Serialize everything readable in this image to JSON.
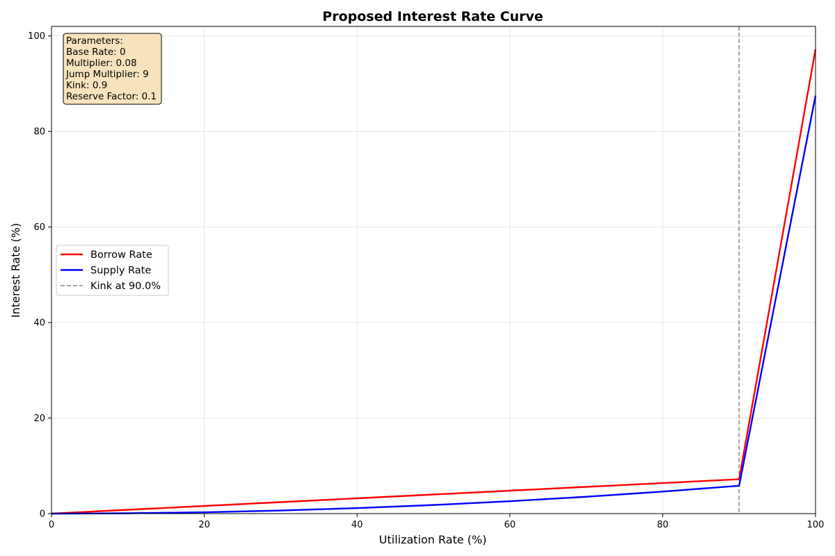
{
  "chart_data": {
    "type": "line",
    "title": "Proposed Interest Rate Curve",
    "xlabel": "Utilization Rate (%)",
    "ylabel": "Interest Rate (%)",
    "xlim": [
      0,
      100
    ],
    "ylim": [
      0,
      102
    ],
    "xticks": [
      0,
      20,
      40,
      60,
      80,
      100
    ],
    "yticks": [
      0,
      20,
      40,
      60,
      80,
      100
    ],
    "grid": true,
    "legend_position": "center-left",
    "series": [
      {
        "name": "Borrow Rate",
        "color": "#ff0000",
        "x": [
          0,
          10,
          20,
          30,
          40,
          50,
          60,
          70,
          80,
          90,
          100
        ],
        "y": [
          0,
          0.8,
          1.6,
          2.4,
          3.2,
          4.0,
          4.8,
          5.6,
          6.4,
          7.2,
          97.2
        ]
      },
      {
        "name": "Supply Rate",
        "color": "#0000ff",
        "x": [
          0,
          10,
          20,
          30,
          40,
          50,
          60,
          70,
          80,
          90,
          100
        ],
        "y": [
          0,
          0.072,
          0.288,
          0.648,
          1.152,
          1.8,
          2.592,
          3.528,
          4.608,
          5.832,
          87.48
        ]
      }
    ],
    "reference_lines": [
      {
        "type": "vertical",
        "x": 90,
        "label": "Kink at 90.0%",
        "color": "#999999",
        "style": "dashed"
      }
    ],
    "annotation": {
      "position": "top-left",
      "lines": [
        "Parameters:",
        "Base Rate: 0",
        "Multiplier: 0.08",
        "Jump Multiplier: 9",
        "Kink: 0.9",
        "Reserve Factor: 0.1"
      ]
    }
  }
}
